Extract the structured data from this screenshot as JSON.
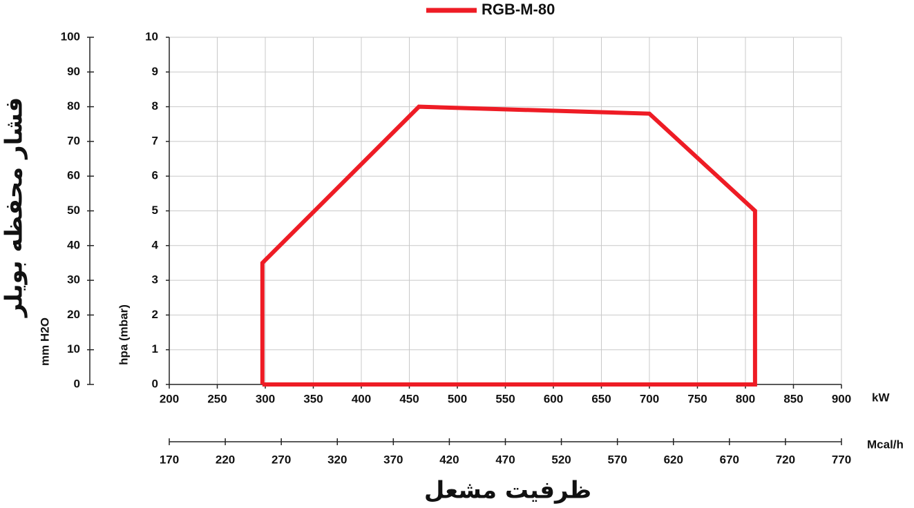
{
  "chart_data": {
    "type": "line",
    "legend": "top",
    "ylabel": "hpa (mbar)",
    "y2label": "mm H2O",
    "ytitle": "فشار محفظه بویلر",
    "xlabel": "ظرفیت مشعل",
    "xunit": "kW",
    "x2unit": "Mcal/h",
    "x": [
      297,
      297,
      460,
      700,
      810,
      810,
      297
    ],
    "series": [
      {
        "name": "RGB-M-80",
        "color": "#ee1c25",
        "values": [
          0,
          3.5,
          8,
          7.8,
          5,
          0,
          0
        ]
      }
    ],
    "xlim": [
      200,
      900
    ],
    "xticks": [
      200,
      250,
      300,
      350,
      400,
      450,
      500,
      550,
      600,
      650,
      700,
      750,
      800,
      850,
      900
    ],
    "x2lim": [
      170,
      770
    ],
    "x2ticks": [
      170,
      220,
      270,
      320,
      370,
      420,
      470,
      520,
      570,
      620,
      670,
      720,
      770
    ],
    "ylim": [
      0,
      10
    ],
    "yticks": [
      0,
      1,
      2,
      3,
      4,
      5,
      6,
      7,
      8,
      9,
      10
    ],
    "y2lim": [
      0,
      100
    ],
    "y2ticks": [
      0,
      10,
      20,
      30,
      40,
      50,
      60,
      70,
      80,
      90,
      100
    ],
    "grid": true
  }
}
